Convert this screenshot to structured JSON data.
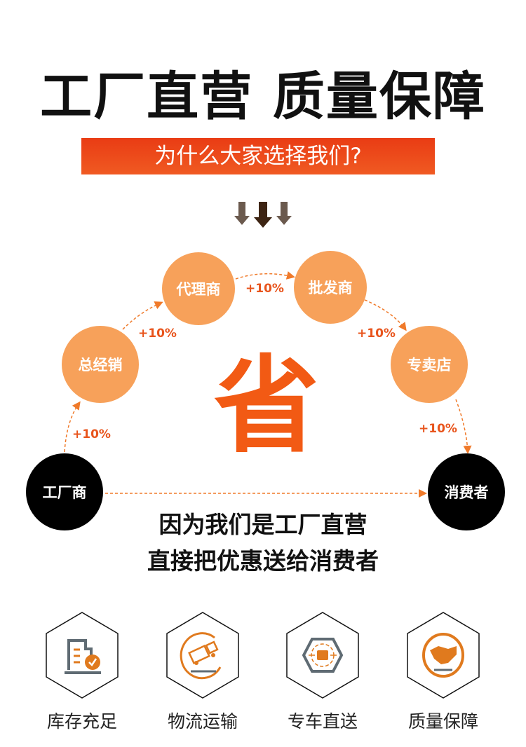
{
  "title": "工厂直营 质量保障",
  "banner": "为什么大家选择我们?",
  "colors": {
    "accent": "#f25a14",
    "node_orange": "#f7a15a",
    "node_black": "#000000",
    "icon_gray": "#5f6b73"
  },
  "flow": {
    "nodes": [
      "工厂商",
      "总经销",
      "代理商",
      "批发商",
      "专卖店",
      "消费者"
    ],
    "markup": "+10%"
  },
  "center_char": "省",
  "slogan": [
    "因为我们是工厂直营",
    "直接把优惠送给消费者"
  ],
  "features": [
    {
      "label": "库存充足",
      "icon": "inventory-check-icon"
    },
    {
      "label": "物流运输",
      "icon": "delivery-truck-icon"
    },
    {
      "label": "专车直送",
      "icon": "dedicated-car-icon"
    },
    {
      "label": "质量保障",
      "icon": "handshake-icon"
    }
  ]
}
